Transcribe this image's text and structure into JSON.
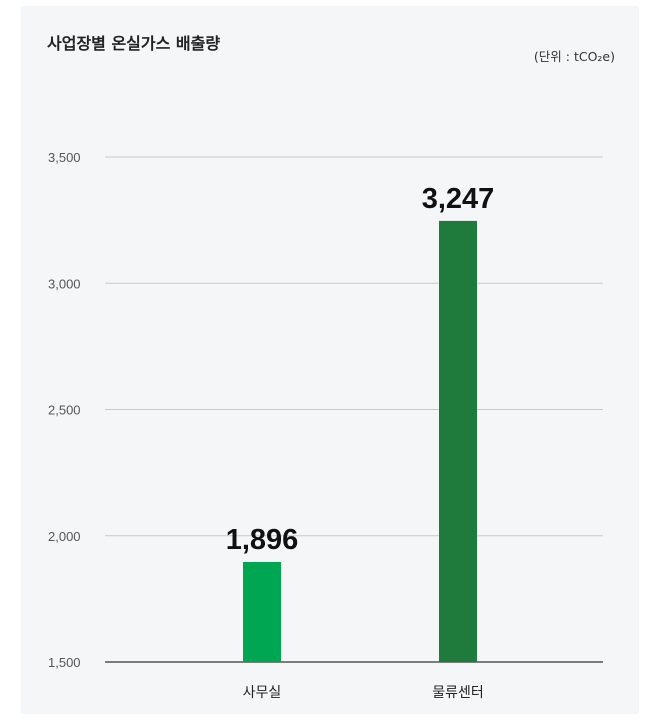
{
  "chart_data": {
    "type": "bar",
    "title": "사업장별 온실가스 배출량",
    "unit_label": "(단위 : tCO₂e)",
    "categories": [
      "사무실",
      "물류센터"
    ],
    "values": [
      1896,
      3247
    ],
    "data_labels": [
      "1,896",
      "3,247"
    ],
    "ylim": [
      1500,
      3500
    ],
    "yticks": [
      1500,
      2000,
      2500,
      3000,
      3500
    ],
    "ytick_labels": [
      "1,500",
      "2,000",
      "2,500",
      "3,000",
      "3,500"
    ],
    "grid": true,
    "colors": [
      "#00a651",
      "#1e7b3c"
    ],
    "xlabel": "",
    "ylabel": ""
  }
}
